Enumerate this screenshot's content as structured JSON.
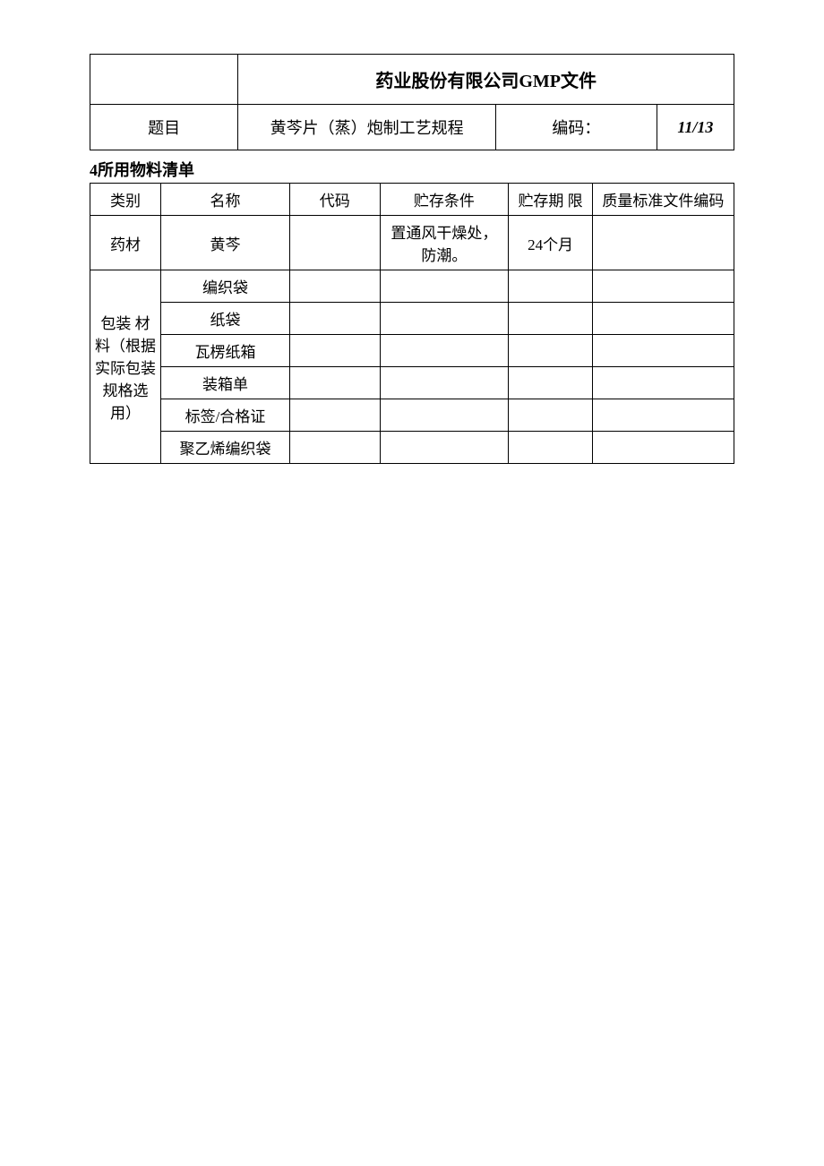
{
  "header": {
    "company_doc": "药业股份有限公司GMP文件",
    "title_label": "题目",
    "title_value": "黄芩片（蒸）炮制工艺规程",
    "code_label": "编码：",
    "page_number": "11/13"
  },
  "section_title": "4所用物料清单",
  "materials_table": {
    "columns": {
      "category": "类别",
      "name": "名称",
      "code": "代码",
      "storage_condition": "贮存条件",
      "storage_period": "贮存期 限",
      "quality_code": "质量标准文件编码"
    },
    "rows": [
      {
        "category": "药材",
        "name": "黄芩",
        "code": "",
        "storage_condition": "置通风干燥处，防潮。",
        "storage_period": "24个月",
        "quality_code": "",
        "rowspan": 1
      },
      {
        "category": "包装 材料（根据实际包装规格选用）",
        "name": "编织袋",
        "code": "",
        "storage_condition": "",
        "storage_period": "",
        "quality_code": "",
        "rowspan": 6
      },
      {
        "name": "纸袋",
        "code": "",
        "storage_condition": "",
        "storage_period": "",
        "quality_code": ""
      },
      {
        "name": "瓦楞纸箱",
        "code": "",
        "storage_condition": "",
        "storage_period": "",
        "quality_code": ""
      },
      {
        "name": "装箱单",
        "code": "",
        "storage_condition": "",
        "storage_period": "",
        "quality_code": ""
      },
      {
        "name": "标签/合格证",
        "code": "",
        "storage_condition": "",
        "storage_period": "",
        "quality_code": ""
      },
      {
        "name": "聚乙烯编织袋",
        "code": "",
        "storage_condition": "",
        "storage_period": "",
        "quality_code": ""
      }
    ]
  }
}
